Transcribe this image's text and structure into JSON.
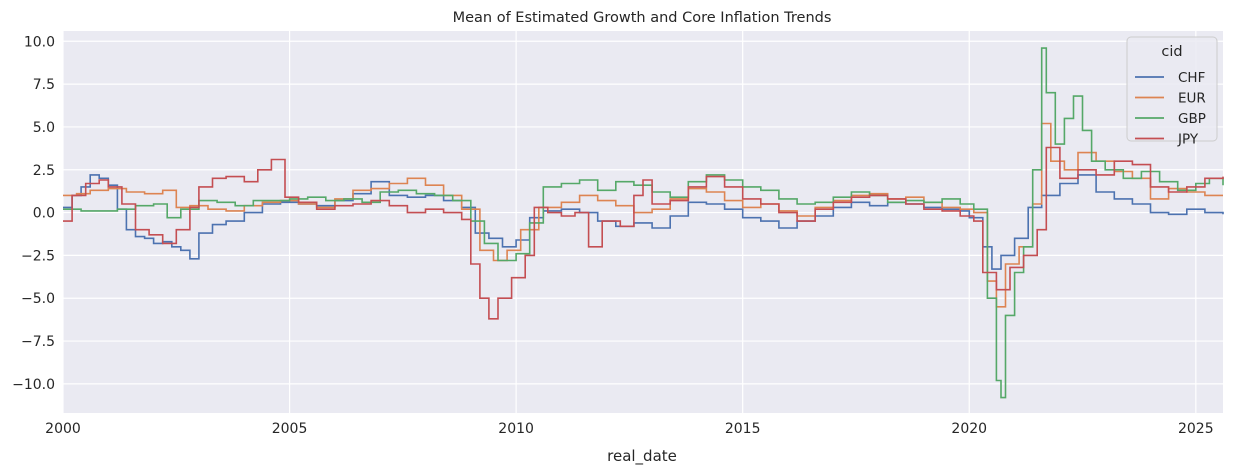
{
  "chart_data": {
    "type": "line",
    "title": "Mean of Estimated Growth and Core Inflation Trends",
    "xlabel": "real_date",
    "ylabel": "",
    "xlim": [
      2000.0,
      2025.6
    ],
    "ylim": [
      -11.7,
      10.6
    ],
    "x_ticks": [
      "2000",
      "2005",
      "2010",
      "2015",
      "2020",
      "2025"
    ],
    "y_ticks": [
      "10.0",
      "7.5",
      "5.0",
      "2.5",
      "0.0",
      "−2.5",
      "−5.0",
      "−7.5",
      "−10.0"
    ],
    "grid": true,
    "legend": {
      "title": "cid",
      "position": "top-right"
    },
    "background": "#eaeaf2",
    "series": [
      {
        "name": "CHF",
        "color": "#4c72b0",
        "points": [
          [
            2000.0,
            0.3
          ],
          [
            2000.2,
            1.0
          ],
          [
            2000.4,
            1.5
          ],
          [
            2000.6,
            2.2
          ],
          [
            2000.8,
            2.0
          ],
          [
            2001.0,
            1.6
          ],
          [
            2001.2,
            0.2
          ],
          [
            2001.4,
            -1.0
          ],
          [
            2001.6,
            -1.4
          ],
          [
            2001.8,
            -1.5
          ],
          [
            2002.0,
            -1.8
          ],
          [
            2002.2,
            -1.7
          ],
          [
            2002.4,
            -2.0
          ],
          [
            2002.6,
            -2.2
          ],
          [
            2002.8,
            -2.7
          ],
          [
            2003.0,
            -1.2
          ],
          [
            2003.3,
            -0.7
          ],
          [
            2003.6,
            -0.5
          ],
          [
            2004.0,
            0.0
          ],
          [
            2004.4,
            0.5
          ],
          [
            2004.8,
            0.6
          ],
          [
            2005.2,
            0.5
          ],
          [
            2005.6,
            0.4
          ],
          [
            2006.0,
            0.7
          ],
          [
            2006.4,
            1.1
          ],
          [
            2006.8,
            1.8
          ],
          [
            2007.2,
            1.0
          ],
          [
            2007.6,
            0.9
          ],
          [
            2008.0,
            1.0
          ],
          [
            2008.4,
            0.7
          ],
          [
            2008.8,
            0.3
          ],
          [
            2009.1,
            -1.2
          ],
          [
            2009.4,
            -1.5
          ],
          [
            2009.7,
            -2.0
          ],
          [
            2010.0,
            -1.6
          ],
          [
            2010.3,
            -0.3
          ],
          [
            2010.6,
            0.1
          ],
          [
            2011.0,
            0.2
          ],
          [
            2011.4,
            0.0
          ],
          [
            2011.8,
            -0.5
          ],
          [
            2012.2,
            -0.8
          ],
          [
            2012.6,
            -0.6
          ],
          [
            2013.0,
            -0.9
          ],
          [
            2013.4,
            -0.2
          ],
          [
            2013.8,
            0.6
          ],
          [
            2014.2,
            0.5
          ],
          [
            2014.6,
            0.2
          ],
          [
            2015.0,
            -0.3
          ],
          [
            2015.4,
            -0.5
          ],
          [
            2015.8,
            -0.9
          ],
          [
            2016.2,
            -0.5
          ],
          [
            2016.6,
            -0.2
          ],
          [
            2017.0,
            0.3
          ],
          [
            2017.4,
            0.6
          ],
          [
            2017.8,
            0.4
          ],
          [
            2018.2,
            0.6
          ],
          [
            2018.6,
            0.5
          ],
          [
            2019.0,
            0.3
          ],
          [
            2019.4,
            0.2
          ],
          [
            2019.8,
            0.1
          ],
          [
            2020.0,
            -0.3
          ],
          [
            2020.3,
            -2.0
          ],
          [
            2020.5,
            -3.3
          ],
          [
            2020.7,
            -2.5
          ],
          [
            2021.0,
            -1.5
          ],
          [
            2021.3,
            0.3
          ],
          [
            2021.6,
            1.0
          ],
          [
            2022.0,
            1.7
          ],
          [
            2022.4,
            2.2
          ],
          [
            2022.8,
            1.2
          ],
          [
            2023.2,
            0.8
          ],
          [
            2023.6,
            0.5
          ],
          [
            2024.0,
            0.0
          ],
          [
            2024.4,
            -0.1
          ],
          [
            2024.8,
            0.2
          ],
          [
            2025.2,
            0.0
          ],
          [
            2025.6,
            -0.1
          ]
        ]
      },
      {
        "name": "EUR",
        "color": "#dd8452",
        "points": [
          [
            2000.0,
            1.0
          ],
          [
            2000.3,
            1.1
          ],
          [
            2000.6,
            1.3
          ],
          [
            2001.0,
            1.4
          ],
          [
            2001.4,
            1.2
          ],
          [
            2001.8,
            1.1
          ],
          [
            2002.2,
            1.3
          ],
          [
            2002.5,
            0.3
          ],
          [
            2002.8,
            0.4
          ],
          [
            2003.2,
            0.2
          ],
          [
            2003.6,
            0.1
          ],
          [
            2004.0,
            0.4
          ],
          [
            2004.4,
            0.6
          ],
          [
            2004.8,
            0.7
          ],
          [
            2005.2,
            0.5
          ],
          [
            2005.6,
            0.3
          ],
          [
            2006.0,
            0.8
          ],
          [
            2006.4,
            1.3
          ],
          [
            2006.8,
            1.4
          ],
          [
            2007.2,
            1.7
          ],
          [
            2007.6,
            2.0
          ],
          [
            2008.0,
            1.6
          ],
          [
            2008.4,
            1.0
          ],
          [
            2008.8,
            0.2
          ],
          [
            2009.2,
            -2.2
          ],
          [
            2009.5,
            -2.8
          ],
          [
            2009.8,
            -2.2
          ],
          [
            2010.1,
            -1.0
          ],
          [
            2010.5,
            0.3
          ],
          [
            2011.0,
            0.6
          ],
          [
            2011.4,
            1.0
          ],
          [
            2011.8,
            0.7
          ],
          [
            2012.2,
            0.4
          ],
          [
            2012.6,
            0.0
          ],
          [
            2013.0,
            0.2
          ],
          [
            2013.4,
            0.8
          ],
          [
            2013.8,
            1.4
          ],
          [
            2014.2,
            1.2
          ],
          [
            2014.6,
            0.7
          ],
          [
            2015.0,
            0.3
          ],
          [
            2015.4,
            0.5
          ],
          [
            2015.8,
            0.1
          ],
          [
            2016.2,
            -0.2
          ],
          [
            2016.6,
            0.3
          ],
          [
            2017.0,
            0.7
          ],
          [
            2017.4,
            1.0
          ],
          [
            2017.8,
            1.1
          ],
          [
            2018.2,
            0.8
          ],
          [
            2018.6,
            0.9
          ],
          [
            2019.0,
            0.6
          ],
          [
            2019.4,
            0.3
          ],
          [
            2019.8,
            0.2
          ],
          [
            2020.1,
            0.0
          ],
          [
            2020.4,
            -4.0
          ],
          [
            2020.6,
            -5.5
          ],
          [
            2020.8,
            -3.0
          ],
          [
            2021.1,
            -2.0
          ],
          [
            2021.4,
            0.5
          ],
          [
            2021.6,
            5.2
          ],
          [
            2021.8,
            3.0
          ],
          [
            2022.1,
            2.5
          ],
          [
            2022.4,
            3.5
          ],
          [
            2022.8,
            3.0
          ],
          [
            2023.2,
            2.4
          ],
          [
            2023.6,
            2.0
          ],
          [
            2024.0,
            0.8
          ],
          [
            2024.4,
            1.4
          ],
          [
            2024.8,
            1.2
          ],
          [
            2025.2,
            1.0
          ],
          [
            2025.6,
            1.0
          ]
        ]
      },
      {
        "name": "GBP",
        "color": "#55a868",
        "points": [
          [
            2000.0,
            0.2
          ],
          [
            2000.4,
            0.1
          ],
          [
            2000.8,
            0.1
          ],
          [
            2001.2,
            0.2
          ],
          [
            2001.6,
            0.4
          ],
          [
            2002.0,
            0.5
          ],
          [
            2002.3,
            -0.3
          ],
          [
            2002.6,
            0.2
          ],
          [
            2003.0,
            0.7
          ],
          [
            2003.4,
            0.6
          ],
          [
            2003.8,
            0.4
          ],
          [
            2004.2,
            0.7
          ],
          [
            2004.6,
            0.7
          ],
          [
            2005.0,
            0.8
          ],
          [
            2005.4,
            0.9
          ],
          [
            2005.8,
            0.7
          ],
          [
            2006.2,
            0.8
          ],
          [
            2006.6,
            0.6
          ],
          [
            2007.0,
            1.2
          ],
          [
            2007.4,
            1.3
          ],
          [
            2007.8,
            1.1
          ],
          [
            2008.2,
            1.0
          ],
          [
            2008.6,
            0.7
          ],
          [
            2009.0,
            -0.5
          ],
          [
            2009.3,
            -1.8
          ],
          [
            2009.6,
            -2.8
          ],
          [
            2010.0,
            -2.4
          ],
          [
            2010.3,
            -0.6
          ],
          [
            2010.6,
            1.5
          ],
          [
            2011.0,
            1.7
          ],
          [
            2011.4,
            1.9
          ],
          [
            2011.8,
            1.3
          ],
          [
            2012.2,
            1.8
          ],
          [
            2012.6,
            1.6
          ],
          [
            2013.0,
            1.2
          ],
          [
            2013.4,
            0.9
          ],
          [
            2013.8,
            1.8
          ],
          [
            2014.2,
            2.2
          ],
          [
            2014.6,
            1.9
          ],
          [
            2015.0,
            1.5
          ],
          [
            2015.4,
            1.3
          ],
          [
            2015.8,
            0.8
          ],
          [
            2016.2,
            0.5
          ],
          [
            2016.6,
            0.6
          ],
          [
            2017.0,
            0.9
          ],
          [
            2017.4,
            1.2
          ],
          [
            2017.8,
            1.0
          ],
          [
            2018.2,
            0.6
          ],
          [
            2018.6,
            0.7
          ],
          [
            2019.0,
            0.6
          ],
          [
            2019.4,
            0.8
          ],
          [
            2019.8,
            0.5
          ],
          [
            2020.1,
            0.2
          ],
          [
            2020.4,
            -5.0
          ],
          [
            2020.6,
            -9.8
          ],
          [
            2020.7,
            -10.8
          ],
          [
            2020.8,
            -6.0
          ],
          [
            2021.0,
            -3.5
          ],
          [
            2021.2,
            -2.0
          ],
          [
            2021.4,
            2.5
          ],
          [
            2021.6,
            9.6
          ],
          [
            2021.7,
            7.0
          ],
          [
            2021.9,
            4.0
          ],
          [
            2022.1,
            5.5
          ],
          [
            2022.3,
            6.8
          ],
          [
            2022.5,
            4.8
          ],
          [
            2022.7,
            3.0
          ],
          [
            2023.0,
            2.5
          ],
          [
            2023.4,
            2.0
          ],
          [
            2023.8,
            2.4
          ],
          [
            2024.2,
            1.8
          ],
          [
            2024.6,
            1.3
          ],
          [
            2025.0,
            1.7
          ],
          [
            2025.3,
            2.0
          ],
          [
            2025.6,
            1.6
          ]
        ]
      },
      {
        "name": "JPY",
        "color": "#c44e52",
        "points": [
          [
            2000.0,
            -0.5
          ],
          [
            2000.2,
            1.0
          ],
          [
            2000.5,
            1.7
          ],
          [
            2000.8,
            1.9
          ],
          [
            2001.0,
            1.5
          ],
          [
            2001.3,
            0.5
          ],
          [
            2001.6,
            -1.0
          ],
          [
            2001.9,
            -1.3
          ],
          [
            2002.2,
            -1.8
          ],
          [
            2002.5,
            -1.0
          ],
          [
            2002.8,
            0.3
          ],
          [
            2003.0,
            1.5
          ],
          [
            2003.3,
            2.0
          ],
          [
            2003.6,
            2.1
          ],
          [
            2004.0,
            1.8
          ],
          [
            2004.3,
            2.5
          ],
          [
            2004.6,
            3.1
          ],
          [
            2004.9,
            0.9
          ],
          [
            2005.2,
            0.6
          ],
          [
            2005.6,
            0.2
          ],
          [
            2006.0,
            0.4
          ],
          [
            2006.4,
            0.5
          ],
          [
            2006.8,
            0.7
          ],
          [
            2007.2,
            0.4
          ],
          [
            2007.6,
            0.0
          ],
          [
            2008.0,
            0.2
          ],
          [
            2008.4,
            0.0
          ],
          [
            2008.8,
            -0.4
          ],
          [
            2009.0,
            -3.0
          ],
          [
            2009.2,
            -5.0
          ],
          [
            2009.4,
            -6.2
          ],
          [
            2009.6,
            -5.0
          ],
          [
            2009.9,
            -3.8
          ],
          [
            2010.2,
            -2.5
          ],
          [
            2010.4,
            0.3
          ],
          [
            2010.7,
            0.0
          ],
          [
            2011.0,
            -0.2
          ],
          [
            2011.3,
            0.0
          ],
          [
            2011.6,
            -2.0
          ],
          [
            2011.9,
            -0.5
          ],
          [
            2012.3,
            -0.8
          ],
          [
            2012.6,
            1.0
          ],
          [
            2012.8,
            1.9
          ],
          [
            2013.0,
            0.5
          ],
          [
            2013.4,
            0.7
          ],
          [
            2013.8,
            1.5
          ],
          [
            2014.2,
            2.1
          ],
          [
            2014.6,
            1.5
          ],
          [
            2015.0,
            0.8
          ],
          [
            2015.4,
            0.5
          ],
          [
            2015.8,
            0.0
          ],
          [
            2016.2,
            -0.5
          ],
          [
            2016.6,
            0.2
          ],
          [
            2017.0,
            0.6
          ],
          [
            2017.4,
            0.9
          ],
          [
            2017.8,
            1.0
          ],
          [
            2018.2,
            0.8
          ],
          [
            2018.6,
            0.5
          ],
          [
            2019.0,
            0.2
          ],
          [
            2019.4,
            0.1
          ],
          [
            2019.8,
            -0.2
          ],
          [
            2020.1,
            -0.5
          ],
          [
            2020.3,
            -3.5
          ],
          [
            2020.6,
            -4.5
          ],
          [
            2020.9,
            -3.2
          ],
          [
            2021.2,
            -2.5
          ],
          [
            2021.5,
            -1.0
          ],
          [
            2021.7,
            3.8
          ],
          [
            2022.0,
            2.0
          ],
          [
            2022.4,
            2.5
          ],
          [
            2022.8,
            2.2
          ],
          [
            2023.2,
            3.0
          ],
          [
            2023.6,
            2.8
          ],
          [
            2024.0,
            1.5
          ],
          [
            2024.4,
            1.2
          ],
          [
            2024.8,
            1.5
          ],
          [
            2025.2,
            2.0
          ],
          [
            2025.6,
            2.1
          ]
        ]
      }
    ]
  }
}
